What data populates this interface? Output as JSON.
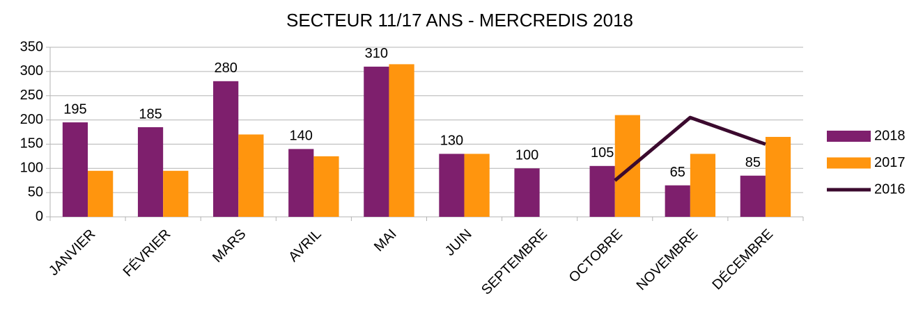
{
  "chart_data": {
    "type": "bar",
    "title": "SECTEUR 11/17 ANS - MERCREDIS 2018",
    "categories": [
      "JANVIER",
      "FÉVRIER",
      "MARS",
      "AVRIL",
      "MAI",
      "JUIN",
      "SEPTEMBRE",
      "OCTOBRE",
      "NOVEMBRE",
      "DÉCEMBRE"
    ],
    "series": [
      {
        "name": "2018",
        "color": "#7e1f6d",
        "type": "bar",
        "values": [
          195,
          185,
          280,
          140,
          310,
          130,
          100,
          105,
          65,
          85
        ],
        "data_labels": true
      },
      {
        "name": "2017",
        "color": "#ff950e",
        "type": "bar",
        "values": [
          95,
          95,
          170,
          125,
          315,
          130,
          null,
          210,
          130,
          165
        ]
      },
      {
        "name": "2016",
        "color": "#3b0a2e",
        "type": "line",
        "values": [
          null,
          null,
          null,
          null,
          null,
          null,
          null,
          75,
          205,
          150
        ]
      }
    ],
    "ylim": [
      0,
      350
    ],
    "yticks": [
      0,
      50,
      100,
      150,
      200,
      250,
      300,
      350
    ],
    "grid": true,
    "legend": "right"
  }
}
